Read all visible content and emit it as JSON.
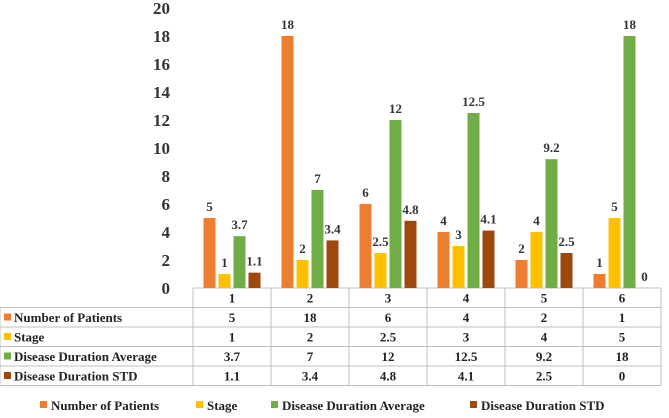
{
  "chart_data": {
    "type": "bar",
    "categories": [
      "1",
      "2",
      "3",
      "4",
      "5",
      "6"
    ],
    "series": [
      {
        "name": "Number of Patients",
        "color": "#ED7D31",
        "values": [
          5,
          18,
          6,
          4,
          2,
          1
        ],
        "labels": [
          "5",
          "18",
          "6",
          "4",
          "2",
          "1"
        ]
      },
      {
        "name": "Stage",
        "color": "#FFC000",
        "values": [
          1,
          2,
          2.5,
          3,
          4,
          5
        ],
        "labels": [
          "1",
          "2",
          "2.5",
          "3",
          "4",
          "5"
        ]
      },
      {
        "name": "Disease Duration Average",
        "color": "#70AD47",
        "values": [
          3.7,
          7,
          12,
          12.5,
          9.2,
          18
        ],
        "labels": [
          "3.7",
          "7",
          "12",
          "12.5",
          "9.2",
          "18"
        ]
      },
      {
        "name": "Disease Duration STD",
        "color": "#9E480E",
        "values": [
          1.1,
          3.4,
          4.8,
          4.1,
          2.5,
          0
        ],
        "labels": [
          "1.1",
          "3.4",
          "4.8",
          "4.1",
          "2.5",
          "0"
        ]
      }
    ],
    "ylim": [
      0,
      20
    ],
    "yticks": [
      "0",
      "2",
      "4",
      "6",
      "8",
      "10",
      "12",
      "14",
      "16",
      "18",
      "20"
    ],
    "title": "",
    "xlabel": "",
    "ylabel": "",
    "data_table": true,
    "legend": "bottom"
  }
}
